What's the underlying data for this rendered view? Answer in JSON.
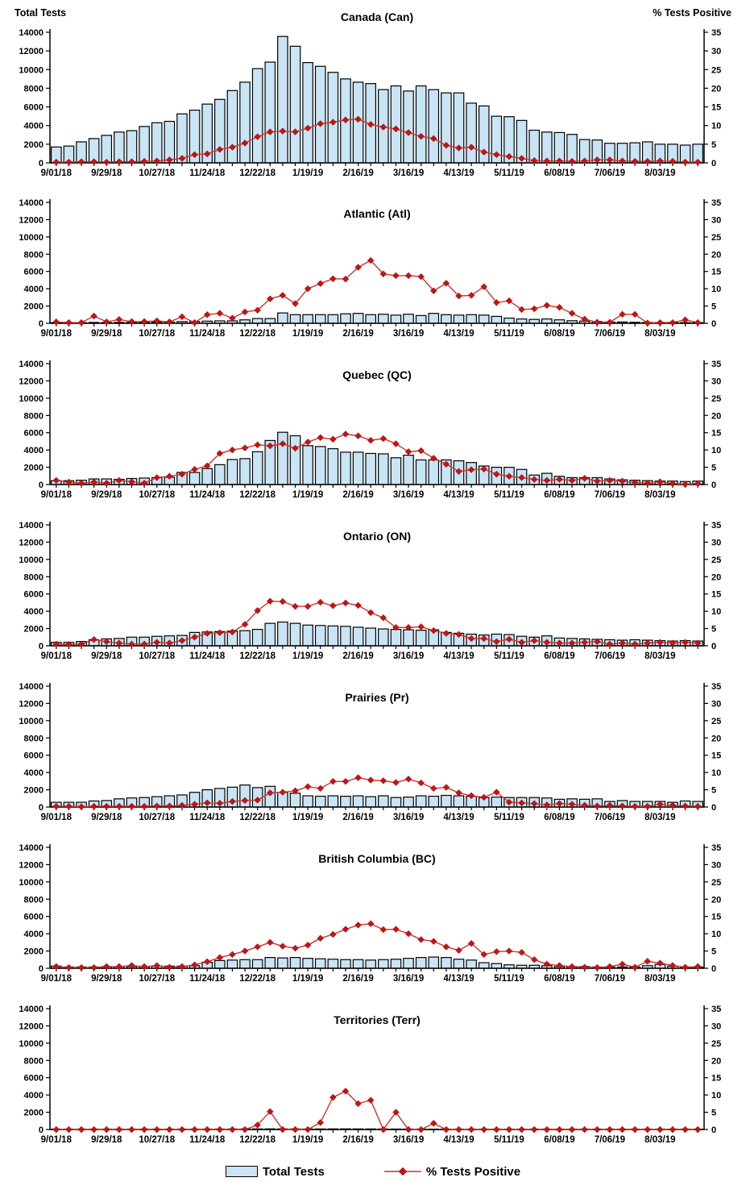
{
  "page": {
    "left_axis_header": "Total Tests",
    "right_axis_header": "% Tests Positive"
  },
  "legend": {
    "bar_label": "Total Tests",
    "line_label": "% Tests Positive"
  },
  "style": {
    "bar_fill": "#C8E4F5",
    "bar_stroke": "#000000",
    "line_color": "#CC3333",
    "marker_color": "#C41414",
    "text_color": "#000000",
    "background": "#FFFFFF"
  },
  "chart_data": {
    "type": "bar",
    "subtype": "combo bar+line, 7 stacked weekly panels",
    "grid": false,
    "legend_position": "bottom center",
    "categories": [
      "9/01/18",
      "9/08/18",
      "9/15/18",
      "9/22/18",
      "9/29/18",
      "10/06/18",
      "10/13/18",
      "10/20/18",
      "10/27/18",
      "11/03/18",
      "11/10/18",
      "11/17/18",
      "11/24/18",
      "12/01/18",
      "12/08/18",
      "12/15/18",
      "12/22/18",
      "12/29/18",
      "1/05/19",
      "1/12/19",
      "1/19/19",
      "1/26/19",
      "2/02/19",
      "2/09/19",
      "2/16/19",
      "2/23/19",
      "3/02/19",
      "3/09/19",
      "3/16/19",
      "3/23/19",
      "3/30/19",
      "4/06/19",
      "4/13/19",
      "4/20/19",
      "4/27/19",
      "5/04/19",
      "5/11/19",
      "5/18/19",
      "5/25/19",
      "6/01/19",
      "6/08/19",
      "6/15/19",
      "6/22/19",
      "6/29/19",
      "7/06/19",
      "7/13/19",
      "7/20/19",
      "7/27/19",
      "8/03/19",
      "8/10/19",
      "8/17/19",
      "8/24/19"
    ],
    "x_tick_labels_shown": [
      "9/01/18",
      "9/29/18",
      "10/27/18",
      "11/24/18",
      "12/22/18",
      "1/19/19",
      "2/16/19",
      "3/16/19",
      "4/13/19",
      "5/11/19",
      "6/08/19",
      "7/06/19",
      "8/03/19"
    ],
    "left_axis": {
      "title": "Total Tests",
      "min": 0,
      "max": 14000,
      "tick_step": 2000,
      "applies_to": "bars"
    },
    "right_axis": {
      "title": "% Tests Positive",
      "min": 0,
      "max": 35,
      "tick_step": 5,
      "applies_to": "line"
    },
    "panels": [
      {
        "id": "canada",
        "title": "Canada (Can)",
        "series": [
          {
            "name": "Total Tests",
            "type": "bar",
            "axis": "left",
            "values": [
              1700,
              1800,
              2250,
              2600,
              2950,
              3300,
              3450,
              3900,
              4300,
              4450,
              5250,
              5650,
              6300,
              6800,
              7750,
              8650,
              10100,
              10800,
              13550,
              12500,
              10750,
              10350,
              9700,
              9000,
              8650,
              8500,
              7850,
              8250,
              7700,
              8250,
              7850,
              7500,
              7500,
              6400,
              6100,
              5000,
              4950,
              4550,
              3500,
              3300,
              3250,
              3050,
              2500,
              2450,
              2100,
              2100,
              2150,
              2250,
              2000,
              2000,
              1900,
              2000
            ]
          },
          {
            "name": "% Tests Positive",
            "type": "line",
            "marker": "diamond",
            "axis": "right",
            "values": [
              0.2,
              0.2,
              0.3,
              0.3,
              0.2,
              0.3,
              0.3,
              0.4,
              0.5,
              0.8,
              1.2,
              2.2,
              2.4,
              3.6,
              4.2,
              5.3,
              7.0,
              8.3,
              8.5,
              8.3,
              9.3,
              10.5,
              10.9,
              11.5,
              11.7,
              10.3,
              9.6,
              9.1,
              8.1,
              7.1,
              6.5,
              4.7,
              4.0,
              4.2,
              2.9,
              2.2,
              1.7,
              1.2,
              0.6,
              0.5,
              0.5,
              0.4,
              0.5,
              0.8,
              0.8,
              0.5,
              0.4,
              0.4,
              0.5,
              0.4,
              0.2,
              0.2
            ]
          }
        ]
      },
      {
        "id": "atlantic",
        "title": "Atlantic (Atl)",
        "series": [
          {
            "name": "Total Tests",
            "type": "bar",
            "axis": "left",
            "values": [
              80,
              70,
              80,
              100,
              80,
              100,
              120,
              120,
              150,
              150,
              200,
              200,
              250,
              280,
              280,
              400,
              550,
              550,
              1200,
              1000,
              1000,
              1000,
              1000,
              1100,
              1150,
              1000,
              1050,
              950,
              1050,
              900,
              1150,
              1000,
              950,
              1000,
              950,
              800,
              600,
              500,
              450,
              500,
              400,
              300,
              250,
              200,
              150,
              150,
              120,
              100,
              100,
              100,
              80,
              80
            ]
          },
          {
            "name": "% Tests Positive",
            "type": "line",
            "marker": "diamond",
            "axis": "right",
            "values": [
              0.4,
              0.2,
              0.2,
              2.1,
              0.4,
              1.1,
              0.5,
              0.5,
              0.7,
              0.4,
              1.9,
              0.2,
              2.5,
              2.9,
              1.5,
              3.3,
              3.8,
              7.1,
              8.1,
              5.7,
              10.0,
              11.5,
              12.9,
              12.8,
              16.2,
              18.2,
              14.3,
              13.8,
              13.8,
              13.5,
              9.4,
              11.6,
              7.9,
              8.1,
              10.6,
              6.0,
              6.5,
              4.0,
              4.2,
              5.2,
              4.6,
              2.9,
              1.2,
              0.3,
              0.3,
              2.6,
              2.6,
              0.1,
              0.2,
              0.2,
              1.0,
              0.2
            ]
          }
        ]
      },
      {
        "id": "quebec",
        "title": "Quebec (QC)",
        "series": [
          {
            "name": "Total Tests",
            "type": "bar",
            "axis": "left",
            "values": [
              450,
              450,
              500,
              650,
              650,
              600,
              700,
              750,
              800,
              850,
              1400,
              1400,
              1850,
              2300,
              2900,
              3000,
              3800,
              5100,
              6050,
              5650,
              4500,
              4400,
              4150,
              3750,
              3750,
              3600,
              3550,
              3100,
              3400,
              2850,
              2850,
              2850,
              2750,
              2550,
              2150,
              2000,
              2000,
              1750,
              1100,
              1300,
              950,
              800,
              800,
              800,
              650,
              550,
              500,
              450,
              400,
              400,
              350,
              400
            ]
          },
          {
            "name": "% Tests Positive",
            "type": "line",
            "marker": "diamond",
            "axis": "right",
            "values": [
              1.2,
              0.7,
              0.4,
              0.7,
              0.4,
              1.2,
              0.8,
              0.4,
              2.0,
              2.4,
              3.0,
              4.4,
              5.4,
              9.0,
              10.0,
              10.6,
              11.5,
              11.2,
              11.8,
              10.5,
              12.3,
              13.6,
              13.1,
              14.6,
              14.1,
              12.8,
              13.3,
              11.8,
              9.5,
              9.8,
              7.6,
              5.9,
              3.8,
              4.3,
              4.5,
              3.0,
              2.4,
              2.0,
              1.5,
              1.2,
              1.5,
              1.2,
              1.8,
              1.0,
              1.2,
              1.0,
              0.6,
              0.4,
              0.8,
              0.3,
              0.1,
              0.3
            ]
          }
        ]
      },
      {
        "id": "ontario",
        "title": "Ontario (ON)",
        "series": [
          {
            "name": "Total Tests",
            "type": "bar",
            "axis": "left",
            "values": [
              400,
              400,
              500,
              700,
              800,
              850,
              1000,
              1000,
              1100,
              1150,
              1200,
              1550,
              1600,
              1650,
              1700,
              1750,
              1900,
              2600,
              2750,
              2600,
              2400,
              2350,
              2300,
              2250,
              2150,
              2050,
              1950,
              1900,
              1850,
              1800,
              1850,
              1550,
              1450,
              1350,
              1250,
              1350,
              1300,
              1100,
              1000,
              1150,
              900,
              850,
              800,
              750,
              700,
              650,
              700,
              650,
              600,
              550,
              600,
              550
            ]
          },
          {
            "name": "% Tests Positive",
            "type": "line",
            "marker": "diamond",
            "axis": "right",
            "values": [
              0.5,
              0.4,
              0.5,
              1.8,
              1.2,
              0.8,
              0.5,
              0.5,
              1.0,
              0.8,
              1.5,
              2.5,
              3.6,
              3.8,
              4.0,
              6.2,
              10.2,
              12.9,
              12.8,
              11.4,
              11.4,
              12.6,
              11.6,
              12.4,
              11.7,
              9.6,
              8.1,
              5.3,
              5.3,
              5.5,
              4.4,
              3.6,
              3.3,
              2.1,
              2.1,
              1.2,
              1.9,
              1.0,
              1.5,
              1.0,
              0.8,
              0.8,
              1.0,
              1.2,
              0.5,
              0.8,
              0.5,
              0.8,
              1.0,
              0.8,
              1.0,
              0.8
            ]
          }
        ]
      },
      {
        "id": "prairies",
        "title": "Prairies (Pr)",
        "series": [
          {
            "name": "Total Tests",
            "type": "bar",
            "axis": "left",
            "values": [
              550,
              550,
              550,
              700,
              750,
              950,
              1050,
              1100,
              1200,
              1300,
              1400,
              1700,
              2000,
              2150,
              2300,
              2550,
              2250,
              2400,
              1700,
              1600,
              1300,
              1250,
              1300,
              1250,
              1300,
              1200,
              1300,
              1100,
              1150,
              1300,
              1250,
              1350,
              1300,
              1250,
              1100,
              1150,
              1100,
              1100,
              1100,
              1050,
              900,
              950,
              900,
              950,
              650,
              750,
              650,
              650,
              650,
              550,
              700,
              650
            ]
          },
          {
            "name": "% Tests Positive",
            "type": "line",
            "marker": "diamond",
            "axis": "right",
            "values": [
              0.2,
              0.2,
              0.1,
              0.2,
              0.2,
              0.2,
              0.2,
              0.2,
              0.3,
              0.3,
              0.5,
              0.8,
              1.2,
              1.1,
              1.6,
              1.9,
              2.0,
              4.1,
              4.3,
              4.7,
              5.9,
              5.4,
              7.4,
              7.4,
              8.5,
              7.8,
              7.6,
              7.1,
              8.1,
              7.0,
              5.4,
              5.7,
              4.1,
              3.3,
              2.8,
              4.3,
              1.4,
              1.2,
              1.0,
              0.6,
              1.0,
              0.8,
              0.5,
              0.3,
              0.5,
              0.3,
              0.2,
              0.2,
              0.8,
              0.5,
              0.3,
              0.2
            ]
          }
        ]
      },
      {
        "id": "british-columbia",
        "title": "British Columbia (BC)",
        "series": [
          {
            "name": "Total Tests",
            "type": "bar",
            "axis": "left",
            "values": [
              250,
              150,
              150,
              150,
              200,
              200,
              200,
              200,
              250,
              250,
              250,
              300,
              700,
              900,
              950,
              1000,
              1000,
              1250,
              1200,
              1250,
              1150,
              1100,
              1050,
              1000,
              1000,
              950,
              1000,
              1050,
              1150,
              1250,
              1300,
              1250,
              1050,
              950,
              650,
              550,
              400,
              350,
              350,
              300,
              200,
              200,
              200,
              150,
              150,
              150,
              150,
              300,
              450,
              250,
              150,
              150
            ]
          },
          {
            "name": "% Tests Positive",
            "type": "line",
            "marker": "diamond",
            "axis": "right",
            "values": [
              0.5,
              0.2,
              0.2,
              0.2,
              0.5,
              0.5,
              0.8,
              0.5,
              0.8,
              0.3,
              0.5,
              1.0,
              1.9,
              3.1,
              4.0,
              5.0,
              6.2,
              7.5,
              6.4,
              5.8,
              6.7,
              8.7,
              9.8,
              11.3,
              12.5,
              12.9,
              11.2,
              11.3,
              10.0,
              8.3,
              7.8,
              6.2,
              5.2,
              7.2,
              4.0,
              4.8,
              5.0,
              4.6,
              2.5,
              1.2,
              0.8,
              0.5,
              0.3,
              0.2,
              0.5,
              1.2,
              0.3,
              2.0,
              1.5,
              0.8,
              0.3,
              0.5
            ]
          }
        ]
      },
      {
        "id": "territories",
        "title": "Territories (Terr)",
        "series": [
          {
            "name": "Total Tests",
            "type": "bar",
            "axis": "left",
            "values": [
              30,
              25,
              20,
              30,
              25,
              30,
              35,
              30,
              40,
              35,
              40,
              45,
              50,
              55,
              60,
              60,
              70,
              75,
              70,
              65,
              60,
              65,
              70,
              75,
              70,
              65,
              60,
              55,
              50,
              50,
              45,
              45,
              40,
              40,
              35,
              35,
              30,
              30,
              25,
              25,
              20,
              20,
              20,
              20,
              20,
              20,
              20,
              20,
              20,
              20,
              20,
              20
            ]
          },
          {
            "name": "% Tests Positive",
            "type": "line",
            "marker": "diamond",
            "axis": "right",
            "values": [
              0,
              0,
              0,
              0,
              0,
              0,
              0,
              0,
              0,
              0,
              0,
              0,
              0,
              0,
              0,
              0,
              1.3,
              5.2,
              0,
              0,
              0,
              2.0,
              9.3,
              11.1,
              7.5,
              8.5,
              0,
              5.0,
              0,
              0,
              1.8,
              0,
              0,
              0,
              0,
              0,
              0,
              0,
              0,
              0,
              0,
              0,
              0,
              0,
              0,
              0,
              0,
              0,
              0,
              0,
              0,
              0
            ]
          }
        ]
      }
    ]
  }
}
